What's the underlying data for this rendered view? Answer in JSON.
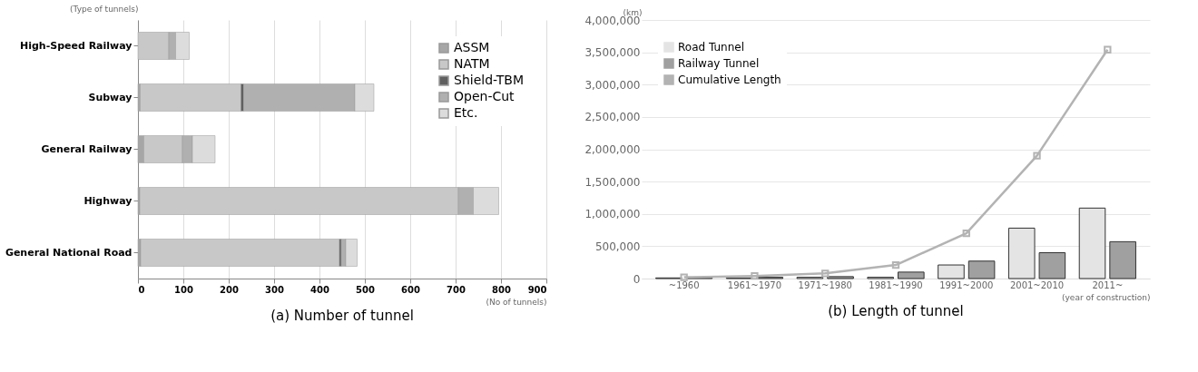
{
  "chart_data": [
    {
      "type": "bar",
      "orientation": "horizontal",
      "stacked": true,
      "title": "(a) Number of tunnel",
      "xlabel": "(No of tunnels)",
      "ylabel": "(Type of tunnels)",
      "categories": [
        "High-Speed Railway",
        "Subway",
        "General Railway",
        "Highway",
        "General National Road"
      ],
      "series": [
        {
          "name": "ASSM",
          "color": "#a6a6a6",
          "values": [
            null,
            5,
            13,
            4,
            6
          ]
        },
        {
          "name": "NATM",
          "color": "#c8c8c8",
          "values": [
            68,
            222,
            85,
            702,
            438
          ]
        },
        {
          "name": "Shield-TBM",
          "color": "#606060",
          "values": [
            null,
            6,
            null,
            null,
            4
          ]
        },
        {
          "name": "Open-Cut",
          "color": "#b0b0b0",
          "values": [
            15,
            245,
            22,
            33,
            10
          ]
        },
        {
          "name": "Etc.",
          "color": "#dcdcdc",
          "values": [
            30,
            42,
            50,
            56,
            25
          ]
        }
      ],
      "xlim": [
        0,
        900
      ],
      "xticks": [
        0,
        100,
        200,
        300,
        400,
        500,
        600,
        700,
        800,
        900
      ],
      "grid": "x",
      "legend": "top right"
    },
    {
      "type": "bar",
      "title": "(b) Length of tunnel",
      "xlabel": "(year of construction)",
      "ylabel": "(km)",
      "categories": [
        "~1960",
        "1961~1970",
        "1971~1980",
        "1981~1990",
        "1991~2000",
        "2001~2010",
        "2011~"
      ],
      "series": [
        {
          "name": "Road Tunnel",
          "color": "#e4e4e4",
          "values": [
            10000,
            10000,
            20000,
            20000,
            210000,
            780000,
            1090000
          ]
        },
        {
          "name": "Railway Tunnel",
          "color": "#a0a0a0",
          "values": [
            10000,
            20000,
            30000,
            100000,
            270000,
            400000,
            570000
          ]
        },
        {
          "name": "Cumulative Length",
          "type": "line",
          "color": "#b3b3b3",
          "marker": "square",
          "values": [
            20000,
            40000,
            80000,
            210000,
            700000,
            1900000,
            3540000
          ]
        }
      ],
      "ylim": [
        0,
        4000000
      ],
      "yticks": [
        0,
        {
          "value": 500000,
          "label": "500,000"
        },
        {
          "value": 1000000,
          "label": "1,000,000"
        },
        {
          "value": 1500000,
          "label": "1,500,000"
        },
        {
          "value": 2000000,
          "label": "2,000,000"
        },
        {
          "value": 2500000,
          "label": "2,500,000"
        },
        {
          "value": 3000000,
          "label": "3,000,000"
        },
        {
          "value": 3500000,
          "label": "3,500,000"
        },
        {
          "value": 4000000,
          "label": "4,000,000"
        }
      ],
      "grid": "y",
      "legend": "top left"
    }
  ]
}
